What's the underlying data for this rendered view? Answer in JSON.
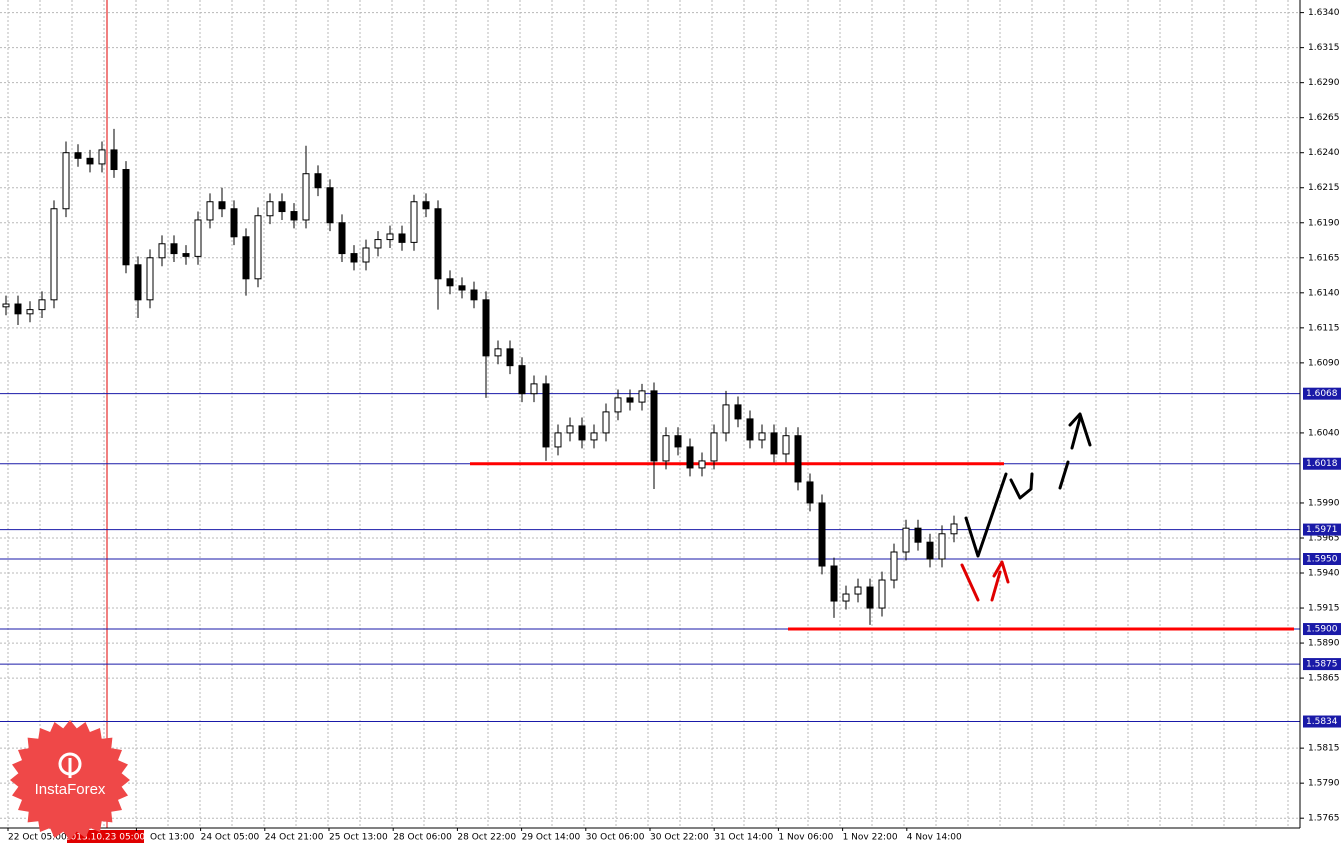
{
  "chart_data": {
    "type": "candlestick",
    "open": [
      1.613,
      1.6132,
      1.6125,
      1.6128,
      1.6135,
      1.62,
      1.624,
      1.6236,
      1.6232,
      1.6242,
      1.6228,
      1.616,
      1.6135,
      1.6165,
      1.6175,
      1.6168,
      1.6166,
      1.6192,
      1.6205,
      1.62,
      1.618,
      1.615,
      1.6195,
      1.6205,
      1.6198,
      1.6192,
      1.6225,
      1.6215,
      1.619,
      1.6168,
      1.6162,
      1.6172,
      1.6178,
      1.6182,
      1.6176,
      1.6205,
      1.62,
      1.615,
      1.6145,
      1.6142,
      1.6135,
      1.6095,
      1.61,
      1.6088,
      1.6068,
      1.6075,
      1.603,
      1.604,
      1.6045,
      1.6035,
      1.604,
      1.6055,
      1.6065,
      1.6062,
      1.607,
      1.602,
      1.6038,
      1.603,
      1.6015,
      1.602,
      1.604,
      1.606,
      1.605,
      1.6035,
      1.604,
      1.6025,
      1.6038,
      1.6005,
      1.599,
      1.5945,
      1.592,
      1.5925,
      1.593,
      1.5915,
      1.5935,
      1.5955,
      1.5972,
      1.5962,
      1.595,
      1.5968
    ],
    "high": [
      1.6138,
      1.6138,
      1.6134,
      1.6141,
      1.6206,
      1.6248,
      1.6246,
      1.6242,
      1.6248,
      1.6257,
      1.6234,
      1.6166,
      1.6171,
      1.6181,
      1.6181,
      1.6174,
      1.6198,
      1.6211,
      1.6215,
      1.6206,
      1.6186,
      1.6201,
      1.6211,
      1.6211,
      1.6204,
      1.6245,
      1.6231,
      1.6221,
      1.6196,
      1.6174,
      1.6178,
      1.6184,
      1.6188,
      1.6188,
      1.621,
      1.6211,
      1.6206,
      1.6156,
      1.6151,
      1.6148,
      1.6141,
      1.6106,
      1.6106,
      1.6094,
      1.6081,
      1.6081,
      1.6046,
      1.6051,
      1.6051,
      1.6046,
      1.6061,
      1.6071,
      1.6071,
      1.6075,
      1.6076,
      1.6044,
      1.6044,
      1.6036,
      1.6026,
      1.6046,
      1.607,
      1.6066,
      1.6056,
      1.6046,
      1.6046,
      1.6044,
      1.6044,
      1.6011,
      1.5996,
      1.5951,
      1.5931,
      1.5936,
      1.5936,
      1.5941,
      1.5961,
      1.5978,
      1.5978,
      1.5968,
      1.5974,
      1.5981
    ],
    "low": [
      1.6124,
      1.6117,
      1.6119,
      1.6122,
      1.6129,
      1.6194,
      1.623,
      1.6226,
      1.6226,
      1.6222,
      1.6154,
      1.6122,
      1.6129,
      1.6159,
      1.6162,
      1.616,
      1.616,
      1.6186,
      1.6194,
      1.6174,
      1.6138,
      1.6144,
      1.6189,
      1.6192,
      1.6186,
      1.6186,
      1.6209,
      1.6184,
      1.6162,
      1.6156,
      1.6156,
      1.6166,
      1.6172,
      1.617,
      1.617,
      1.6194,
      1.6128,
      1.6139,
      1.6136,
      1.6129,
      1.6065,
      1.6089,
      1.6082,
      1.6062,
      1.6062,
      1.602,
      1.6024,
      1.6034,
      1.6029,
      1.6029,
      1.6034,
      1.6049,
      1.6056,
      1.6056,
      1.6,
      1.6014,
      1.6024,
      1.6009,
      1.6009,
      1.6014,
      1.6034,
      1.6044,
      1.6029,
      1.6029,
      1.6019,
      1.6019,
      1.5999,
      1.5984,
      1.5939,
      1.5908,
      1.5914,
      1.5919,
      1.5903,
      1.5909,
      1.5929,
      1.5949,
      1.5956,
      1.5944,
      1.5944,
      1.5962
    ],
    "close": [
      1.6132,
      1.6125,
      1.6128,
      1.6135,
      1.62,
      1.624,
      1.6236,
      1.6232,
      1.6242,
      1.6228,
      1.616,
      1.6135,
      1.6165,
      1.6175,
      1.6168,
      1.6166,
      1.6192,
      1.6205,
      1.62,
      1.618,
      1.615,
      1.6195,
      1.6205,
      1.6198,
      1.6192,
      1.6225,
      1.6215,
      1.619,
      1.6168,
      1.6162,
      1.6172,
      1.6178,
      1.6182,
      1.6176,
      1.6205,
      1.62,
      1.615,
      1.6145,
      1.6142,
      1.6135,
      1.6095,
      1.61,
      1.6088,
      1.6068,
      1.6075,
      1.603,
      1.604,
      1.6045,
      1.6035,
      1.604,
      1.6055,
      1.6065,
      1.6062,
      1.607,
      1.602,
      1.6038,
      1.603,
      1.6015,
      1.602,
      1.604,
      1.606,
      1.605,
      1.6035,
      1.604,
      1.6025,
      1.6038,
      1.6005,
      1.599,
      1.5945,
      1.592,
      1.5925,
      1.593,
      1.5915,
      1.5935,
      1.5955,
      1.5972,
      1.5962,
      1.595,
      1.5968,
      1.5975
    ],
    "color": "#000000",
    "ylim": [
      1.5758,
      1.6349
    ],
    "yticks": [
      {
        "value": 1.634,
        "label": "1.6340"
      },
      {
        "value": 1.6315,
        "label": "1.6315"
      },
      {
        "value": 1.629,
        "label": "1.6290"
      },
      {
        "value": 1.6265,
        "label": "1.6265"
      },
      {
        "value": 1.624,
        "label": "1.6240"
      },
      {
        "value": 1.6215,
        "label": "1.6215"
      },
      {
        "value": 1.619,
        "label": "1.6190"
      },
      {
        "value": 1.6165,
        "label": "1.6165"
      },
      {
        "value": 1.614,
        "label": "1.6140"
      },
      {
        "value": 1.6115,
        "label": "1.6115"
      },
      {
        "value": 1.609,
        "label": "1.6090"
      },
      {
        "value": 1.604,
        "label": "1.6040"
      },
      {
        "value": 1.599,
        "label": "1.5990"
      },
      {
        "value": 1.5965,
        "label": "1.5965"
      },
      {
        "value": 1.594,
        "label": "1.5940"
      },
      {
        "value": 1.5915,
        "label": "1.5915"
      },
      {
        "value": 1.589,
        "label": "1.5890"
      },
      {
        "value": 1.5865,
        "label": "1.5865"
      },
      {
        "value": 1.5815,
        "label": "1.5815"
      },
      {
        "value": 1.579,
        "label": "1.5790"
      },
      {
        "value": 1.5765,
        "label": "1.5765"
      }
    ],
    "grid": true,
    "x_labels": [
      "22 Oct 05:00",
      "2013.10.23 05:00",
      "Oct 13:00",
      "24 Oct 05:00",
      "24 Oct 21:00",
      "25 Oct 13:00",
      "28 Oct 06:00",
      "28 Oct 22:00",
      "29 Oct 14:00",
      "30 Oct 06:00",
      "30 Oct 22:00",
      "31 Oct 14:00",
      "1 Nov 06:00",
      "1 Nov 22:00",
      "4 Nov 14:00"
    ],
    "levels": [
      1.6068,
      1.6018,
      1.5971,
      {
        "value": 1.595,
        "label": "1.5950"
      },
      {
        "value": 1.59,
        "label": "1.5900"
      },
      1.5875,
      1.5834
    ],
    "level_color": "#1a1aa8",
    "key_levels": [
      1.6018,
      1.59
    ],
    "key_level_color": "#ff0000"
  },
  "logo": {
    "text": "InstaForex"
  }
}
